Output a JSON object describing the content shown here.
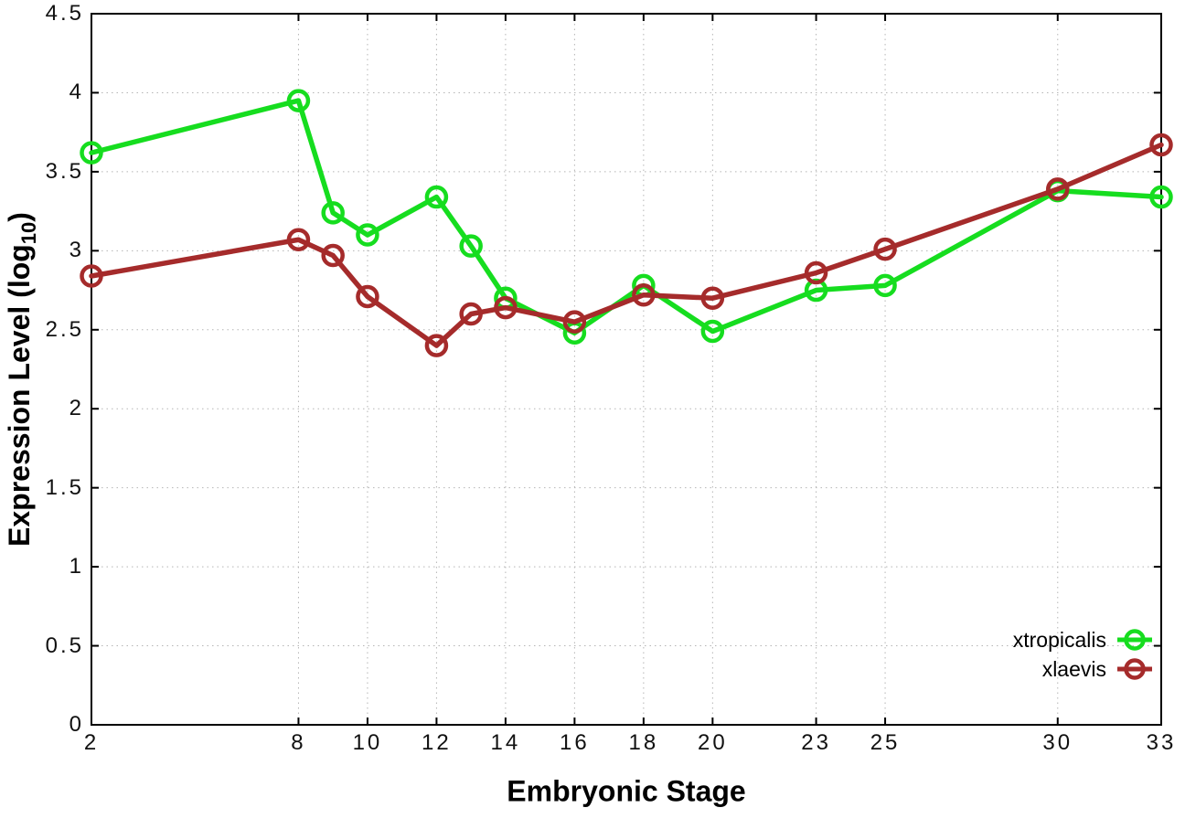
{
  "chart_data": {
    "type": "line",
    "x": [
      2,
      8,
      9,
      10,
      12,
      13,
      14,
      16,
      18,
      20,
      23,
      25,
      30,
      33
    ],
    "series": [
      {
        "name": "xtropicalis",
        "color": "#16dd1f",
        "values": [
          3.62,
          3.95,
          3.24,
          3.1,
          3.34,
          3.03,
          2.7,
          2.48,
          2.78,
          2.49,
          2.75,
          2.78,
          3.38,
          3.34
        ]
      },
      {
        "name": "xlaevis",
        "color": "#a52b2b",
        "values": [
          2.84,
          3.07,
          2.97,
          2.71,
          2.4,
          2.6,
          2.64,
          2.55,
          2.72,
          2.7,
          2.86,
          3.01,
          3.39,
          3.67
        ]
      }
    ],
    "xlabel": "Embryonic Stage",
    "ylabel": "Expression Level (log10)",
    "ylabel_parts": {
      "pre": "Expression Level (log",
      "sub": "10",
      "post": ")"
    },
    "x_ticks": [
      2,
      8,
      10,
      12,
      14,
      16,
      18,
      20,
      23,
      25,
      30,
      33
    ],
    "y_ticks": [
      0,
      0.5,
      1,
      1.5,
      2,
      2.5,
      3,
      3.5,
      4,
      4.5
    ],
    "xlim": [
      2,
      33
    ],
    "ylim": [
      0,
      4.5
    ],
    "grid": true,
    "grid_style": "dotted",
    "legend_position": "bottom-right",
    "marker": "open-circle",
    "background": "#ffffff",
    "border_color": "#000000",
    "grid_color": "#b5b5b5",
    "tick_label_color": "#111111"
  }
}
